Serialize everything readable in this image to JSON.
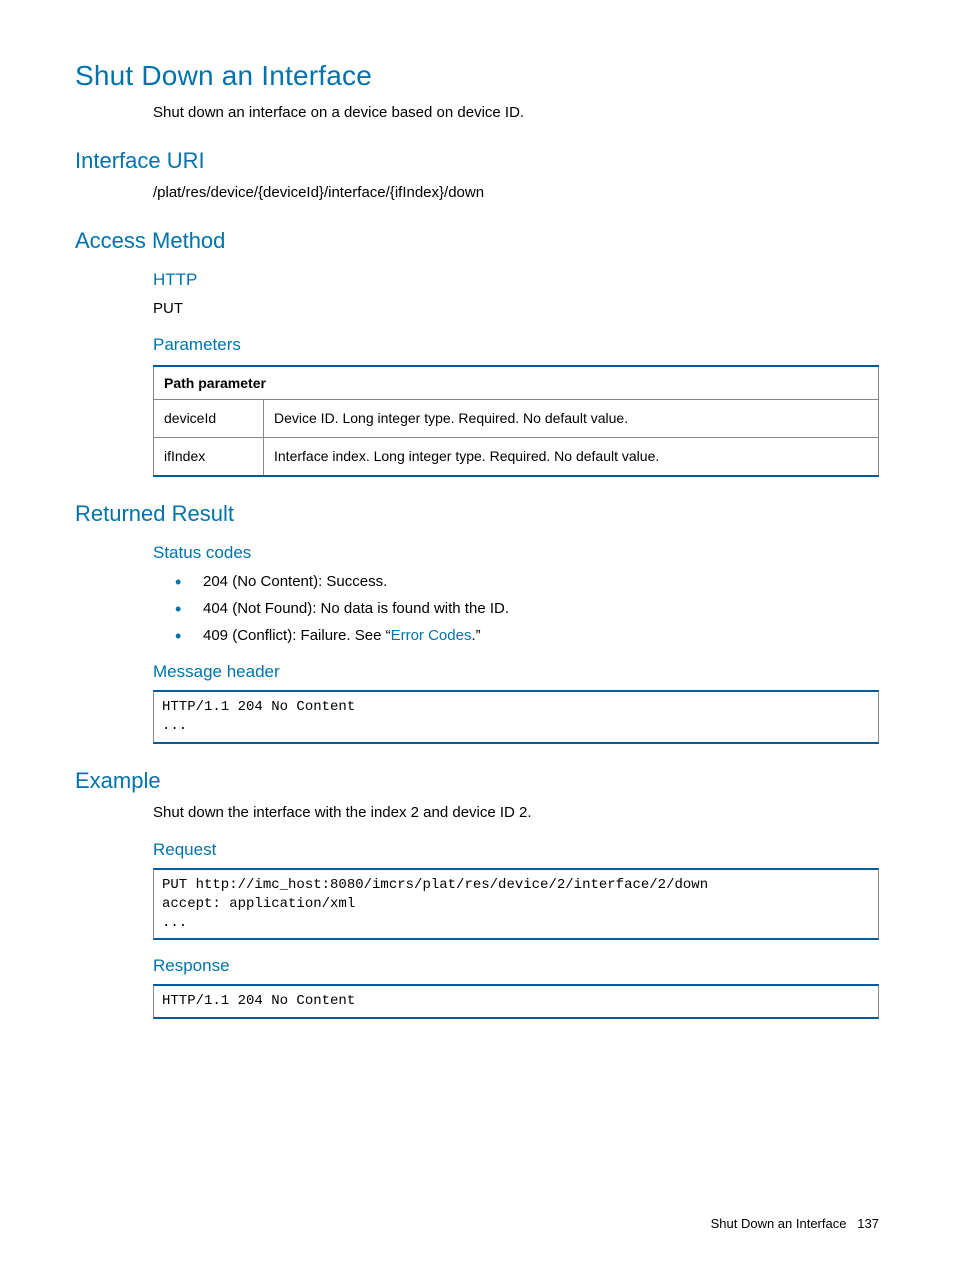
{
  "title": "Shut Down an Interface",
  "intro": "Shut down an interface on a device based on device ID.",
  "sections": {
    "interface_uri": {
      "heading": "Interface URI",
      "text": "/plat/res/device/{deviceId}/interface/{ifIndex}/down"
    },
    "access_method": {
      "heading": "Access Method",
      "http_heading": "HTTP",
      "http_method": "PUT",
      "parameters_heading": "Parameters",
      "table": {
        "header": "Path parameter",
        "rows": [
          {
            "name": "deviceId",
            "desc": "Device ID.\nLong integer type. Required. No default value."
          },
          {
            "name": "ifIndex",
            "desc": "Interface index.\nLong integer type. Required. No default value."
          }
        ]
      }
    },
    "returned_result": {
      "heading": "Returned Result",
      "status_codes_heading": "Status codes",
      "status_codes": [
        "204 (No Content): Success.",
        "404 (Not Found): No data is found with the ID."
      ],
      "status_code_conflict_prefix": "409 (Conflict): Failure. See “",
      "status_code_conflict_link": "Error Codes",
      "status_code_conflict_suffix": ".”",
      "message_header_heading": "Message header",
      "message_header_code": "HTTP/1.1 204 No Content\n..."
    },
    "example": {
      "heading": "Example",
      "intro": "Shut down the interface with the index 2 and device ID 2.",
      "request_heading": "Request",
      "request_code": "PUT http://imc_host:8080/imcrs/plat/res/device/2/interface/2/down\naccept: application/xml\n...",
      "response_heading": "Response",
      "response_code": "HTTP/1.1 204 No Content"
    }
  },
  "footer": {
    "title": "Shut Down an Interface",
    "page": "137"
  },
  "colors": {
    "heading_blue": "#0073ad",
    "rule_blue": "#005a9c",
    "text": "#000000",
    "border_gray": "#888888",
    "background": "#ffffff"
  }
}
